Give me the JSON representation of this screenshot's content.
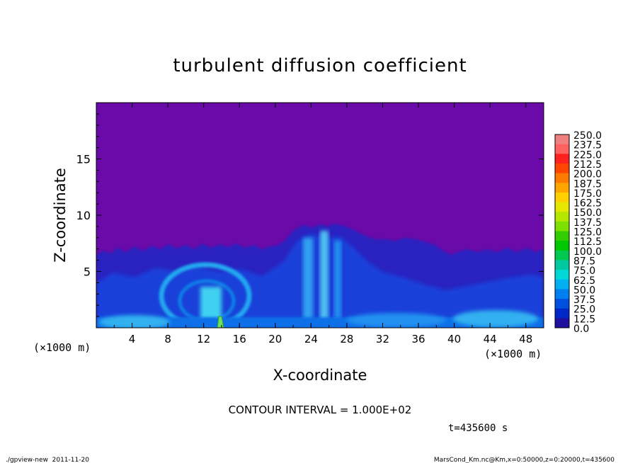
{
  "chart_data": {
    "type": "heatmap",
    "title": "turbulent diffusion coefficient",
    "xlabel": "X-coordinate",
    "ylabel": "Z-coordinate",
    "x_unit_left": "(×1000 m)",
    "x_unit_right": "(×1000 m)",
    "xlim": [
      0,
      50
    ],
    "ylim": [
      0,
      20
    ],
    "x_ticks": [
      "4",
      "8",
      "12",
      "16",
      "20",
      "24",
      "28",
      "32",
      "36",
      "40",
      "44",
      "48"
    ],
    "y_ticks": [
      "5",
      "10",
      "15"
    ],
    "colorbar_labels": [
      "250.0",
      "237.5",
      "225.0",
      "212.5",
      "200.0",
      "187.5",
      "175.0",
      "162.5",
      "150.0",
      "137.5",
      "125.0",
      "112.5",
      "100.0",
      "87.5",
      "75.0",
      "62.5",
      "50.0",
      "37.5",
      "25.0",
      "12.5",
      "0.0"
    ],
    "colorbar_colors": [
      "#f08080",
      "#ff6060",
      "#ff2020",
      "#ff4500",
      "#ff7a00",
      "#ffa500",
      "#ffd000",
      "#e6e600",
      "#b4e600",
      "#7ee000",
      "#33cc00",
      "#00c800",
      "#00c850",
      "#00c8a0",
      "#00d8d8",
      "#00b0f0",
      "#0080f0",
      "#0050e0",
      "#0028c8",
      "#2010a0",
      "#6a0aa8"
    ],
    "background_color": "#6a0aa8",
    "contour_interval_text": "CONTOUR INTERVAL = 1.000E+02",
    "time_text": "t=435600 s"
  },
  "footer": {
    "left": "./gpview-new  2011-11-20",
    "right": "MarsCond_Km.nc@Km,x=0:50000,z=0:20000,t=435600"
  }
}
